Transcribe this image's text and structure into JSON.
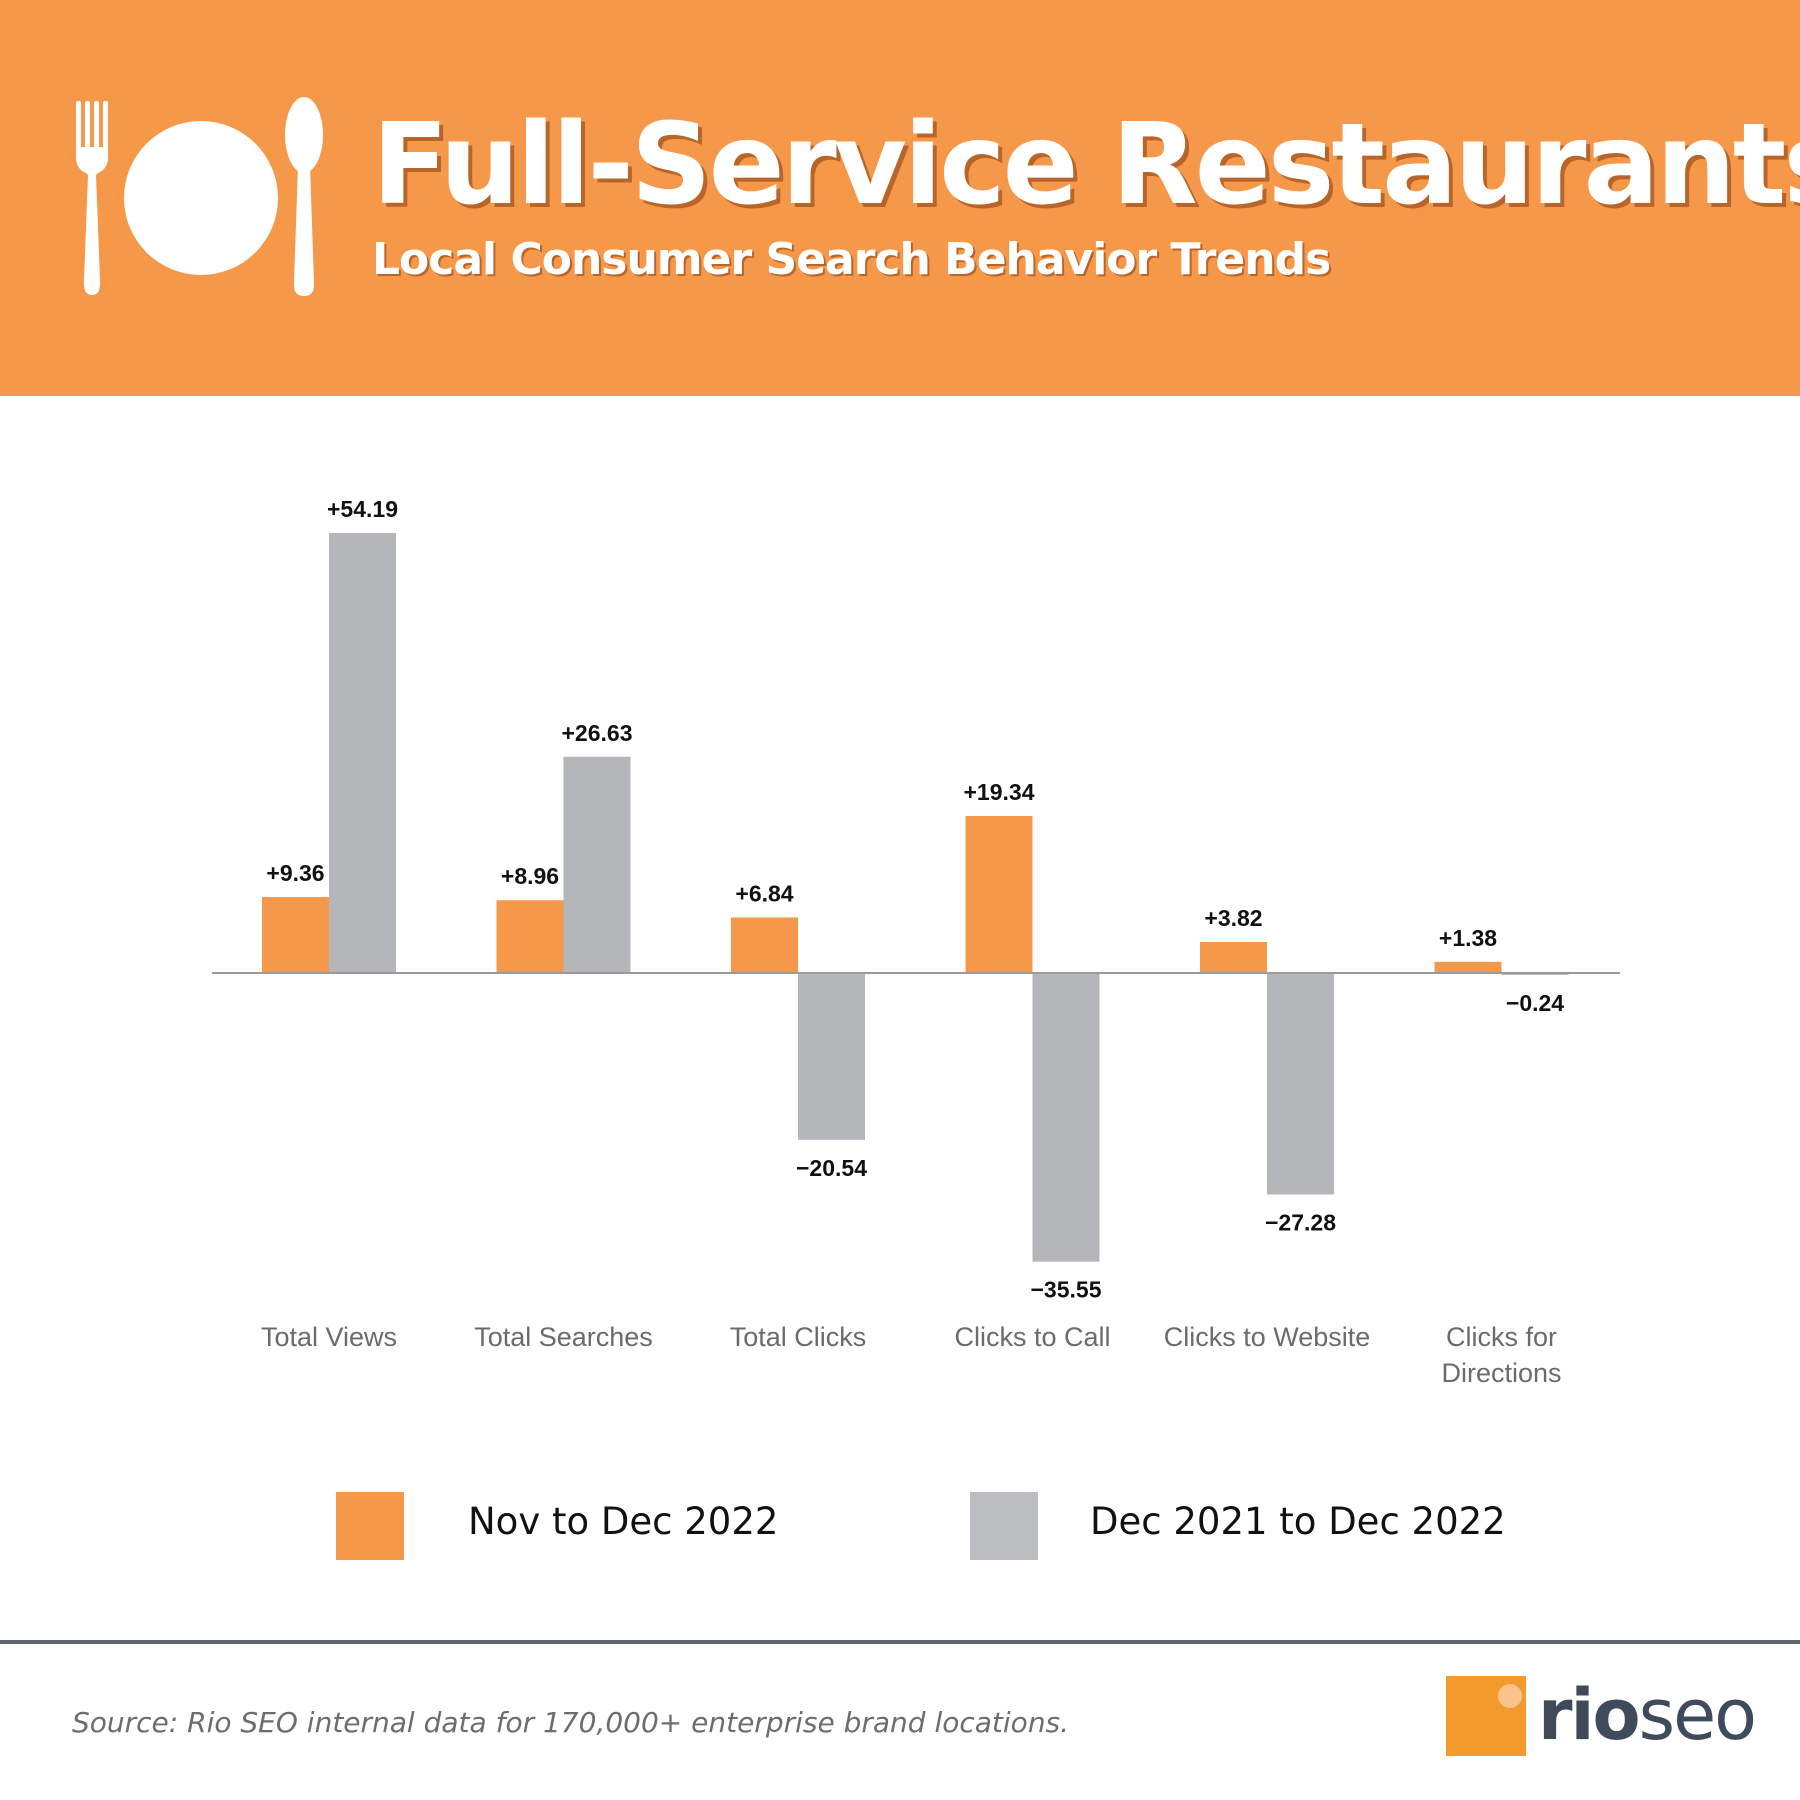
{
  "header": {
    "title": "Full-Service Restaurants",
    "subtitle": "Local Consumer Search Behavior Trends",
    "icons": [
      "fork-icon",
      "plate-icon",
      "spoon-icon"
    ]
  },
  "colors": {
    "header_bg": "#F6984A",
    "series_orange": "#F6984A",
    "series_gray": "#B5B6BA",
    "axis": "#999999",
    "category_label": "#6b6b6b"
  },
  "chart_data": {
    "type": "bar",
    "categories": [
      "Total Views",
      "Total Searches",
      "Total Clicks",
      "Clicks to Call",
      "Clicks to Website",
      "Clicks for Directions"
    ],
    "category_lines": [
      [
        "Total Views"
      ],
      [
        "Total Searches"
      ],
      [
        "Total Clicks"
      ],
      [
        "Clicks to Call"
      ],
      [
        "Clicks to Website"
      ],
      [
        "Clicks for",
        "Directions"
      ]
    ],
    "series": [
      {
        "name": "Nov to Dec 2022",
        "values": [
          9.36,
          8.96,
          6.84,
          19.34,
          3.82,
          1.38
        ],
        "labels": [
          "+9.36",
          "+8.96",
          "+6.84",
          "+19.34",
          "+3.82",
          "+1.38"
        ]
      },
      {
        "name": "Dec 2021 to Dec 2022",
        "values": [
          54.19,
          26.63,
          -20.54,
          -35.55,
          -27.28,
          -0.24
        ],
        "labels": [
          "+54.19",
          "+26.63",
          "−20.54",
          "−35.55",
          "−27.28",
          "−0.24"
        ]
      }
    ],
    "ylim": [
      -40,
      60
    ],
    "title": "",
    "xlabel": "",
    "ylabel": "",
    "grid": false
  },
  "legend": {
    "items": [
      {
        "label": "Nov to Dec 2022"
      },
      {
        "label": "Dec 2021 to Dec 2022"
      }
    ]
  },
  "footer": {
    "source": "Source: Rio SEO internal data for 170,000+ enterprise brand locations.",
    "logo_rio": "rio",
    "logo_seo": "seo"
  }
}
